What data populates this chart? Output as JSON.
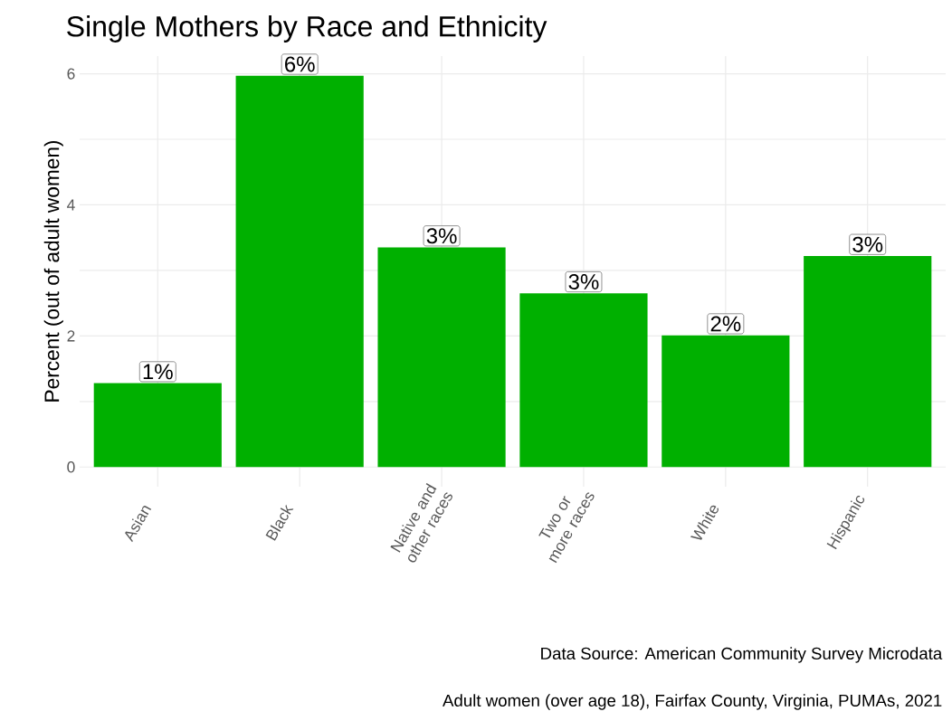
{
  "chart_data": {
    "type": "bar",
    "title": "Single Mothers by Race and Ethnicity",
    "ylabel": "Percent (out of adult women)",
    "categories": [
      "Asian",
      "Black",
      "Native and other races",
      "Two or more races",
      "White",
      "Hispanic"
    ],
    "values": [
      1.28,
      5.97,
      3.35,
      2.65,
      2.01,
      3.22
    ],
    "value_labels": [
      "1%",
      "6%",
      "3%",
      "3%",
      "2%",
      "3%"
    ],
    "color": "#00b000",
    "ylim": [
      -0.3,
      6.27
    ],
    "yticks": [
      0,
      {
        "value": 1,
        "label": null
      },
      2,
      {
        "value": 3,
        "label": null
      },
      4,
      {
        "value": 5,
        "label": null
      },
      6
    ],
    "grid": true,
    "annotations": [
      "Data Source: American Community Survey Microdata",
      "Adult women (over age 18), Fairfax County, Virginia, PUMAs, 2021"
    ]
  }
}
